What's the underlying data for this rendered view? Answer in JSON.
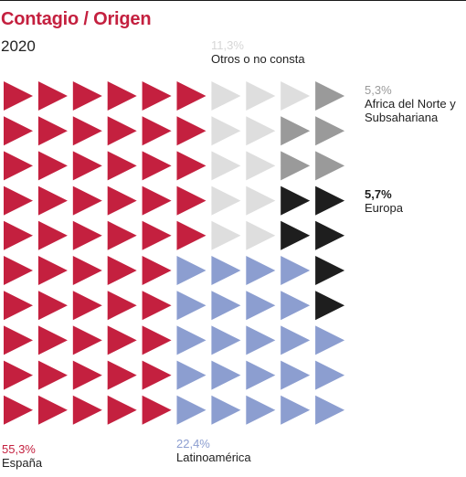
{
  "title": "Contagio / Origen",
  "subtitle": "2020",
  "chart_data": {
    "type": "waffle",
    "title": "Contagio / Origen",
    "subtitle": "2020",
    "columns": 10,
    "rows": 10,
    "series": [
      {
        "name": "España",
        "value_label": "55,3%",
        "value": 55.3,
        "color": "#c4203f"
      },
      {
        "name": "Latinoamérica",
        "value_label": "22,4%",
        "value": 22.4,
        "color": "#8c9ed0"
      },
      {
        "name": "Otros o no consta",
        "value_label": "11,3%",
        "value": 11.3,
        "color": "#dedede"
      },
      {
        "name": "Africa del Norte y Subsahariana",
        "value_label": "5,3%",
        "value": 5.3,
        "color": "#9a9a9a"
      },
      {
        "name": "Europa",
        "value_label": "5,7%",
        "value": 5.7,
        "color": "#1e1e1e"
      }
    ],
    "cells": [
      [
        "E",
        "E",
        "E",
        "E",
        "E",
        "E",
        "O",
        "O",
        "O",
        "A"
      ],
      [
        "E",
        "E",
        "E",
        "E",
        "E",
        "E",
        "O",
        "O",
        "A",
        "A"
      ],
      [
        "E",
        "E",
        "E",
        "E",
        "E",
        "E",
        "O",
        "O",
        "A",
        "A"
      ],
      [
        "E",
        "E",
        "E",
        "E",
        "E",
        "E",
        "O",
        "O",
        "U",
        "U"
      ],
      [
        "E",
        "E",
        "E",
        "E",
        "E",
        "E",
        "O",
        "O",
        "U",
        "U"
      ],
      [
        "E",
        "E",
        "E",
        "E",
        "E",
        "L",
        "L",
        "L",
        "L",
        "U"
      ],
      [
        "E",
        "E",
        "E",
        "E",
        "E",
        "L",
        "L",
        "L",
        "L",
        "U"
      ],
      [
        "E",
        "E",
        "E",
        "E",
        "E",
        "L",
        "L",
        "L",
        "L",
        "L"
      ],
      [
        "E",
        "E",
        "E",
        "E",
        "E",
        "L",
        "L",
        "L",
        "L",
        "L"
      ],
      [
        "E",
        "E",
        "E",
        "E",
        "E",
        "L",
        "L",
        "L",
        "L",
        "L"
      ]
    ],
    "cell_key": {
      "E": 0,
      "L": 1,
      "O": 2,
      "A": 3,
      "U": 4
    }
  }
}
